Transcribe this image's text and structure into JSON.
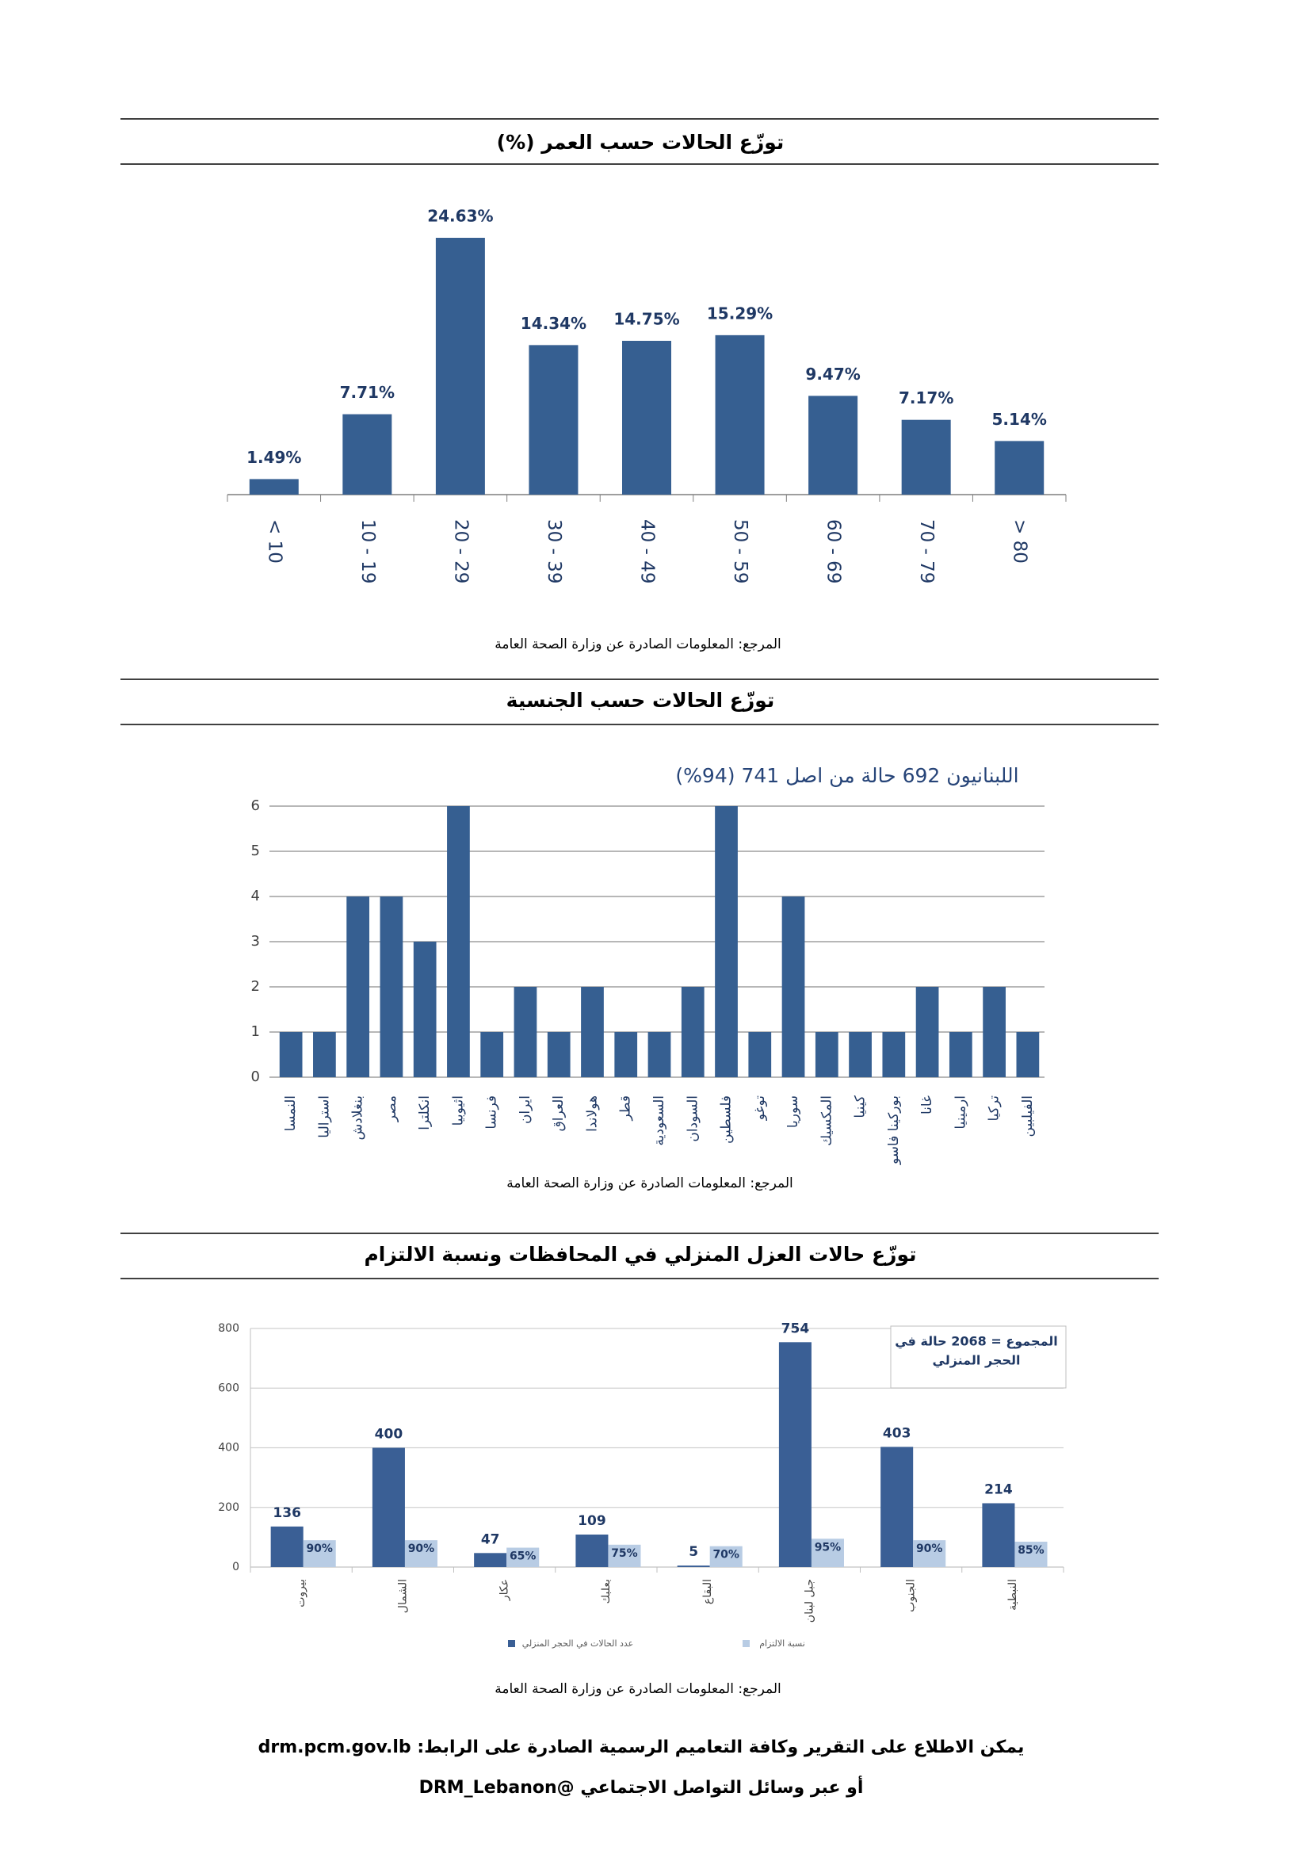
{
  "chart_data": [
    {
      "type": "bar",
      "title": "توزّع الحالات حسب العمر (%)",
      "categories": [
        "< 10",
        "10 - 19",
        "20 - 29",
        "30 - 39",
        "40 - 49",
        "50 - 59",
        "60 - 69",
        "70 - 79",
        "> 80"
      ],
      "values": [
        1.49,
        7.71,
        24.63,
        14.34,
        14.75,
        15.29,
        9.47,
        7.17,
        5.14
      ],
      "value_labels": [
        "1.49%",
        "7.71%",
        "24.63%",
        "14.34%",
        "14.75%",
        "15.29%",
        "9.47%",
        "7.17%",
        "5.14%"
      ],
      "color": "#365f91",
      "source": "المرجع: المعلومات الصادرة عن وزارة الصحة العامة"
    },
    {
      "type": "bar",
      "title": "توزّع الحالات حسب الجنسية",
      "annotation": "اللبنانيون 692 حالة من اصل 741 (94%)",
      "categories": [
        "النمسا",
        "استراليا",
        "بنغلادش",
        "مصر",
        "انكلترا",
        "اثيوبيا",
        "فرنسا",
        "ايران",
        "العراق",
        "هولاندا",
        "قطر",
        "السعودية",
        "السودان",
        "فلسطين",
        "توغو",
        "سوريا",
        "المكسيك",
        "كينيا",
        "بوركينا فاسو",
        "غانا",
        "ارمينيا",
        "تركيا",
        "الفيلبين"
      ],
      "values": [
        1,
        1,
        4,
        4,
        3,
        6,
        1,
        2,
        1,
        2,
        1,
        1,
        2,
        6,
        1,
        4,
        1,
        1,
        1,
        2,
        1,
        2,
        1
      ],
      "ylim": [
        0,
        6
      ],
      "yticks": [
        0,
        1,
        2,
        3,
        4,
        5,
        6
      ],
      "grid": true,
      "color": "#365f91",
      "source": "المرجع: المعلومات الصادرة عن وزارة الصحة العامة"
    },
    {
      "type": "grouped_bar",
      "title": "توزّع حالات العزل المنزلي في المحافظات ونسبة الالتزام",
      "annotation": [
        "المجموع = 2068 حالة في",
        "الحجر المنزلي"
      ],
      "categories": [
        "بيروت",
        "الشمال",
        "عكار",
        "بعلبك",
        "البقاع",
        "جبل لبنان",
        "الجنوب",
        "النبطية"
      ],
      "series": [
        {
          "name": "عدد الحالات في الحجر المنزلي",
          "color": "#3a5f95",
          "values": [
            136,
            400,
            47,
            109,
            5,
            754,
            403,
            214
          ]
        },
        {
          "name": "نسبة الالتزام",
          "color": "#b8cce4",
          "values": [
            90,
            90,
            65,
            75,
            70,
            95,
            90,
            85
          ],
          "value_labels": [
            "90%",
            "90%",
            "65%",
            "75%",
            "70%",
            "95%",
            "90%",
            "85%"
          ]
        }
      ],
      "ylim": [
        0,
        800
      ],
      "yticks": [
        0,
        200,
        400,
        600,
        800
      ],
      "grid": true,
      "legend": "bottom",
      "source": "المرجع: المعلومات الصادرة عن وزارة الصحة العامة"
    }
  ],
  "footer": {
    "line1": "يمكن الاطلاع على التقرير وكافة التعاميم الرسمية الصادرة على الرابط: drm.pcm.gov.lb",
    "line2": "أو عبر وسائل التواصل الاجتماعي @DRM_Lebanon"
  }
}
